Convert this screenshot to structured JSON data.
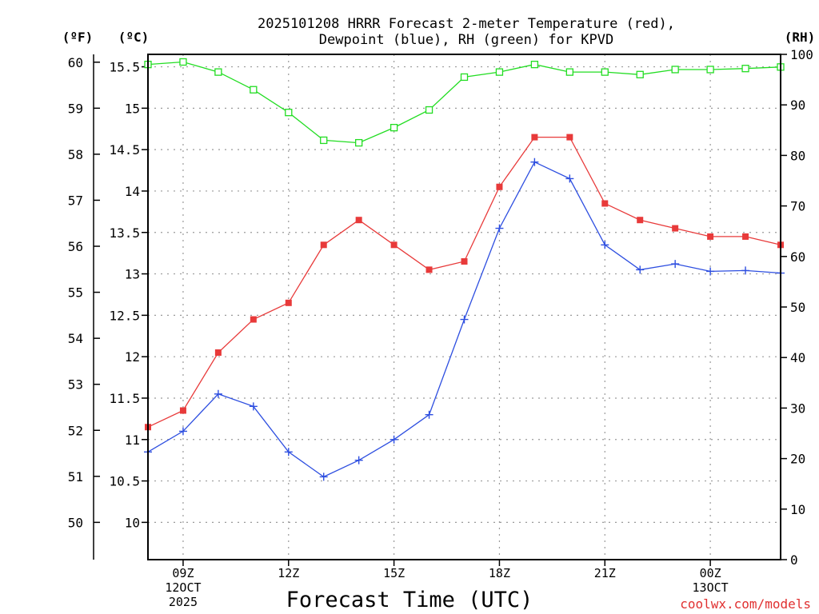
{
  "chart_data": {
    "type": "line",
    "title_lines": [
      "2025101208 HRRR Forecast 2-meter Temperature (red),",
      "Dewpoint (blue), RH (green) for KPVD"
    ],
    "xlabel": "Forecast Time (UTC)",
    "credit": "coolwx.com/models",
    "units": {
      "fahrenheit": "(ºF)",
      "celsius": "(ºC)",
      "rh": "(RH)"
    },
    "x_hours": [
      8,
      9,
      10,
      11,
      12,
      13,
      14,
      15,
      16,
      17,
      18,
      19,
      20,
      21,
      22,
      23,
      24,
      25,
      26
    ],
    "xlim": [
      8,
      26
    ],
    "x_ticks": [
      {
        "hour": 9,
        "lines": [
          "09Z",
          "12OCT",
          "2025"
        ]
      },
      {
        "hour": 12,
        "lines": [
          "12Z"
        ]
      },
      {
        "hour": 15,
        "lines": [
          "15Z"
        ]
      },
      {
        "hour": 18,
        "lines": [
          "18Z"
        ]
      },
      {
        "hour": 21,
        "lines": [
          "21Z"
        ]
      },
      {
        "hour": 24,
        "lines": [
          "00Z",
          "13OCT"
        ]
      }
    ],
    "celsius_axis": {
      "lim": [
        9.55,
        15.65
      ],
      "ticks": [
        "10",
        "10.5",
        "11",
        "11.5",
        "12",
        "12.5",
        "13",
        "13.5",
        "14",
        "14.5",
        "15",
        "15.5"
      ]
    },
    "fahrenheit_axis": {
      "lim": [
        49.19,
        60.17
      ],
      "ticks": [
        "50",
        "51",
        "52",
        "53",
        "54",
        "55",
        "56",
        "57",
        "58",
        "59",
        "60"
      ]
    },
    "rh_axis": {
      "lim": [
        0,
        100
      ],
      "ticks": [
        "0",
        "10",
        "20",
        "30",
        "40",
        "50",
        "60",
        "70",
        "80",
        "90",
        "100"
      ]
    },
    "series": [
      {
        "name": "Temperature",
        "axis": "celsius",
        "color": "#e83a3a",
        "marker": "filled-square",
        "values": [
          11.15,
          11.35,
          12.05,
          12.45,
          12.65,
          13.35,
          13.65,
          13.35,
          13.05,
          13.15,
          14.05,
          14.65,
          14.65,
          13.85,
          13.65,
          13.55,
          13.45,
          13.45,
          13.35
        ]
      },
      {
        "name": "Dewpoint",
        "axis": "celsius",
        "color": "#2d4ee0",
        "marker": "plus",
        "values": [
          10.85,
          11.1,
          11.55,
          11.4,
          10.85,
          10.55,
          10.75,
          11.0,
          11.3,
          12.45,
          13.55,
          14.35,
          14.15,
          13.35,
          13.05,
          13.12,
          13.03,
          13.04,
          13.01
        ]
      },
      {
        "name": "RH",
        "axis": "rh",
        "color": "#22dd22",
        "marker": "open-square",
        "values": [
          98,
          98.5,
          96.5,
          93,
          88.5,
          83,
          82.5,
          85.5,
          89,
          95.5,
          96.5,
          98,
          96.5,
          96.5,
          96,
          97,
          97,
          97.2,
          97.5
        ]
      }
    ]
  }
}
